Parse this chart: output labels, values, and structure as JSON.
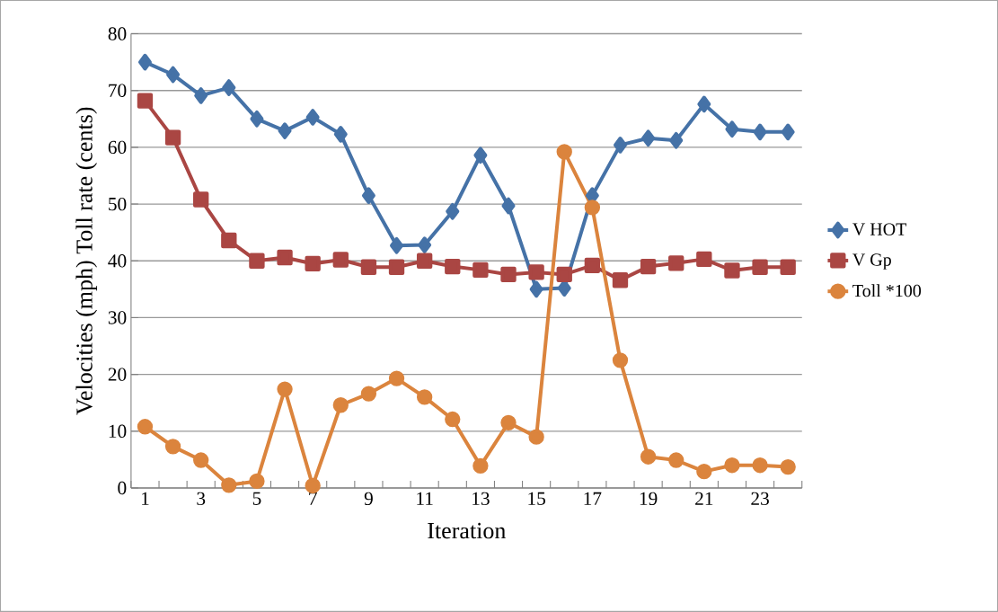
{
  "chart_data": {
    "type": "line",
    "xlabel": "Iteration",
    "ylabel": "Velocities (mph)   Toll rate (cents)",
    "categories": [
      "1",
      null,
      "3",
      null,
      "5",
      null,
      "7",
      null,
      "9",
      null,
      "11",
      null,
      "13",
      null,
      "15",
      null,
      "17",
      null,
      "19",
      null,
      "21",
      null,
      "23",
      null
    ],
    "series": [
      {
        "name": "V HOT",
        "color": "#4572a7",
        "marker": "diamond",
        "values": [
          75,
          72.8,
          69.1,
          70.5,
          65,
          62.9,
          65.3,
          62.3,
          51.5,
          42.7,
          42.8,
          48.7,
          58.6,
          49.7,
          35,
          35.2,
          51.5,
          60.4,
          61.6,
          61.2,
          67.6,
          63.2,
          62.7,
          62.7
        ]
      },
      {
        "name": "V Gp",
        "color": "#aa4643",
        "marker": "square",
        "values": [
          68.2,
          61.7,
          50.8,
          43.6,
          40,
          40.6,
          39.5,
          40.2,
          38.9,
          38.9,
          40,
          39,
          38.4,
          37.6,
          38,
          37.6,
          39.2,
          36.6,
          39,
          39.6,
          40.3,
          38.3,
          38.9,
          38.9
        ]
      },
      {
        "name": "Toll *100",
        "color": "#db843d",
        "marker": "circle",
        "values": [
          10.8,
          7.3,
          4.9,
          0.5,
          1.2,
          17.4,
          0.4,
          14.6,
          16.6,
          19.3,
          16,
          12.1,
          3.9,
          11.5,
          9,
          59.2,
          49.4,
          22.5,
          5.5,
          4.9,
          2.9,
          4,
          4,
          3.7
        ]
      }
    ],
    "ylim": [
      0,
      80
    ],
    "yticks": [
      0,
      10,
      20,
      30,
      40,
      50,
      60,
      70,
      80
    ],
    "grid": "y",
    "legend": "right"
  }
}
